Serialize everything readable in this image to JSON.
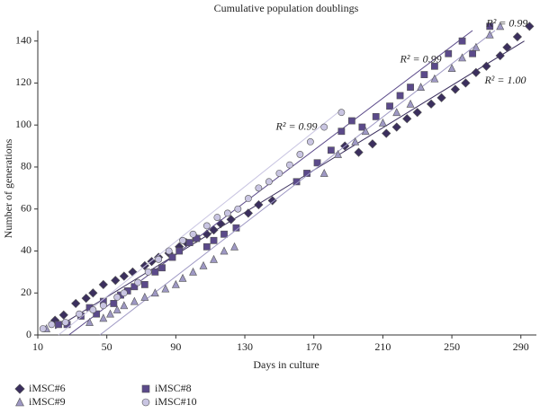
{
  "chart_data": {
    "type": "scatter",
    "title": "Cumulative population doublings",
    "xlabel": "Days in culture",
    "ylabel": "Number of generations",
    "xlim": [
      10,
      299
    ],
    "ylim": [
      0,
      145
    ],
    "xticks": [
      10,
      50,
      90,
      130,
      170,
      210,
      250,
      290
    ],
    "yticks": [
      0,
      20,
      40,
      60,
      80,
      100,
      120,
      140
    ],
    "series": [
      {
        "name": "iMSC#6",
        "color": "#3b2f5e",
        "marker": "diamond",
        "x": [
          20,
          25,
          32,
          38,
          42,
          48,
          55,
          60,
          65,
          72,
          76,
          80,
          86,
          92,
          96,
          102,
          108,
          112,
          116,
          122,
          132,
          138,
          146,
          188,
          196,
          204,
          212,
          218,
          224,
          230,
          238,
          244,
          252,
          258,
          264,
          270,
          278,
          282,
          288,
          295
        ],
        "values": [
          7,
          9.5,
          15,
          17.5,
          20,
          24,
          26,
          28,
          30,
          33,
          35,
          37,
          39,
          42,
          44,
          46,
          48,
          50,
          53,
          55,
          58,
          62,
          64,
          90,
          87,
          91,
          96,
          99,
          103,
          106,
          110,
          113,
          117,
          120,
          125,
          128,
          133,
          137,
          142,
          147
        ],
        "trend": [
          [
            20,
            3
          ],
          [
            292,
            140
          ]
        ],
        "r2": "R² = 1.00",
        "r2_at": [
          281,
          121
        ]
      },
      {
        "name": "iMSC#8",
        "color": "#5b4a8a",
        "marker": "square",
        "x": [
          22,
          27,
          35,
          40,
          44,
          48,
          54,
          58,
          62,
          66,
          72,
          78,
          82,
          88,
          92,
          98,
          102,
          108,
          112,
          118,
          125,
          160,
          166,
          172,
          180,
          186,
          192,
          198,
          206,
          214,
          220,
          226,
          234,
          240,
          248,
          256,
          262,
          272
        ],
        "values": [
          5,
          5,
          9,
          13,
          10,
          16,
          15,
          19,
          21,
          23,
          24,
          30,
          32,
          37,
          40,
          44,
          46,
          42,
          45,
          48,
          51,
          73,
          77,
          82,
          88,
          97,
          102,
          99,
          104,
          109,
          114,
          118,
          124,
          128,
          134,
          140,
          134,
          147
        ],
        "trend": [
          [
            28,
            0
          ],
          [
            262,
            145
          ]
        ],
        "r2": "R² = 0.99",
        "r2_at": [
          232,
          131
        ]
      },
      {
        "name": "iMSC#9",
        "color": "#9e98c4",
        "marker": "triangle",
        "x": [
          15,
          40,
          48,
          52,
          56,
          60,
          66,
          72,
          78,
          84,
          90,
          94,
          100,
          106,
          112,
          118,
          124,
          176,
          184,
          194,
          200,
          210,
          218,
          226,
          232,
          240,
          250,
          256,
          264,
          272,
          278
        ],
        "values": [
          3,
          6,
          8,
          10,
          12,
          14,
          16,
          18,
          20,
          22,
          24,
          27,
          30,
          33,
          36,
          40,
          42,
          77,
          86,
          92,
          97,
          101,
          106,
          110,
          118,
          122,
          127,
          132,
          137,
          143,
          147
        ],
        "trend": [
          [
            46,
            0
          ],
          [
            275,
            145
          ]
        ],
        "r2": "R² = 0.99",
        "r2_at": [
          282,
          148
        ]
      },
      {
        "name": "iMSC#10",
        "color": "#c9c5e2",
        "marker": "circle",
        "x": [
          13,
          18,
          26,
          34,
          42,
          48,
          56,
          60,
          68,
          74,
          80,
          86,
          94,
          100,
          108,
          114,
          120,
          126,
          132,
          138,
          144,
          150,
          156,
          162,
          168,
          176,
          186
        ],
        "values": [
          3,
          5,
          6,
          10,
          12,
          14,
          18,
          20,
          25,
          30,
          36,
          40,
          45,
          48,
          52,
          56,
          58,
          60,
          65,
          70,
          73,
          77,
          81,
          86,
          92,
          99,
          106
        ],
        "trend": [
          [
            22,
            0
          ],
          [
            184,
            106
          ]
        ],
        "r2": "R² = 0.99",
        "r2_at": [
          160,
          99
        ]
      }
    ]
  }
}
